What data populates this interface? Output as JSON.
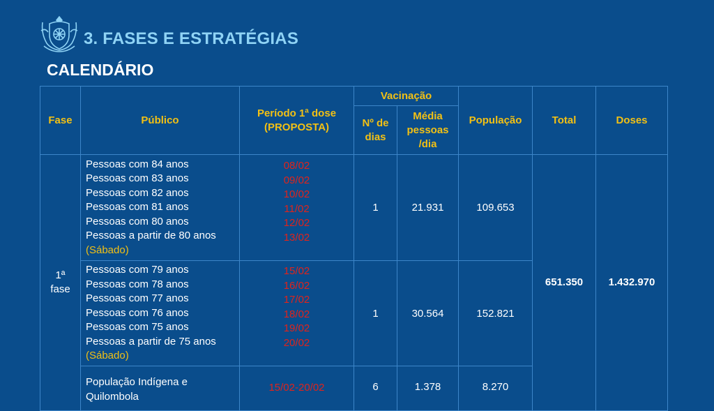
{
  "header": {
    "title": "3. FASES E ESTRATÉGIAS",
    "subtitle": "CALENDÁRIO"
  },
  "table": {
    "headers": {
      "fase": "Fase",
      "publico": "Público",
      "periodo_line1": "Período 1ª dose",
      "periodo_line2": "(PROPOSTA)",
      "vacinacao": "Vacinação",
      "n_dias_line1": "Nº de",
      "n_dias_line2": "dias",
      "media_line1": "Média",
      "media_line2": "pessoas",
      "media_line3": "/dia",
      "populacao": "População",
      "total": "Total",
      "doses": "Doses"
    },
    "fase_label_line1": "1ª",
    "fase_label_line2": "fase",
    "total": "651.350",
    "doses": "1.432.970",
    "groups": [
      {
        "publico": [
          "Pessoas com 84 anos",
          "Pessoas com 83 anos",
          "Pessoas com 82 anos",
          "Pessoas com 81 anos",
          "Pessoas com 80 anos",
          "Pessoas a partir de 80 anos"
        ],
        "sabado": "(Sábado)",
        "periodo": [
          "08/02",
          "09/02",
          "10/02",
          "11/02",
          "12/02",
          "13/02"
        ],
        "n_dias": "1",
        "media": "21.931",
        "populacao": "109.653"
      },
      {
        "publico": [
          "Pessoas com 79 anos",
          "Pessoas com 78 anos",
          "Pessoas com 77 anos",
          "Pessoas com 76 anos",
          "Pessoas com 75 anos",
          "Pessoas a partir de 75 anos"
        ],
        "sabado": "(Sábado)",
        "periodo": [
          "15/02",
          "16/02",
          "17/02",
          "18/02",
          "19/02",
          "20/02"
        ],
        "n_dias": "1",
        "media": "30.564",
        "populacao": "152.821"
      },
      {
        "publico": [
          "População Indígena e",
          "Quilombola"
        ],
        "periodo": [
          "15/02-20/02"
        ],
        "n_dias": "6",
        "media": "1.378",
        "populacao": "8.270"
      }
    ]
  },
  "colors": {
    "background": "#0a4d8c",
    "title": "#8fd3f5",
    "header_text": "#f2c014",
    "date_text": "#e0231b",
    "border": "#3d86c9"
  },
  "icons": {
    "logo": "rio-coat-of-arms-icon"
  }
}
